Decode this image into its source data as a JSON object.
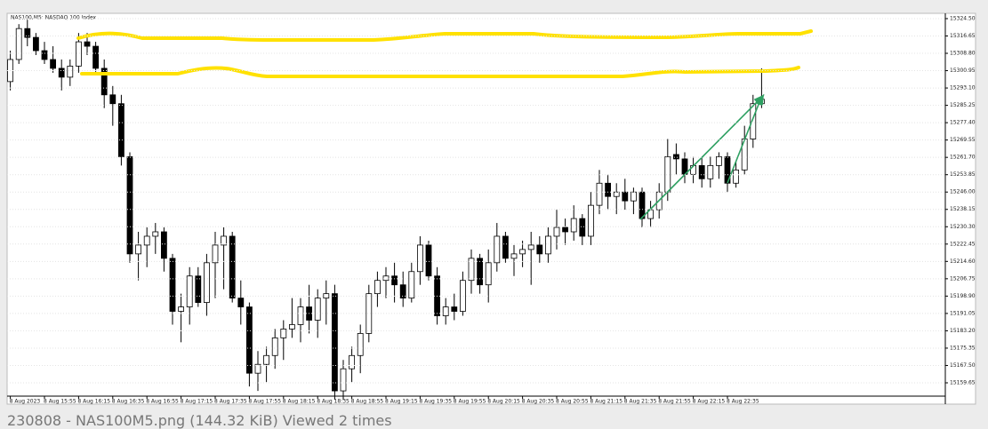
{
  "chart_data": {
    "type": "candlestick",
    "title": "NAS100,M5:  NASDAQ 100 Index",
    "categories": [
      "8 Aug 2023",
      null,
      null,
      null,
      "8 Aug 15:55",
      null,
      null,
      null,
      "8 Aug 16:15",
      null,
      null,
      null,
      "8 Aug 16:35",
      null,
      null,
      null,
      "8 Aug 16:55",
      null,
      null,
      null,
      "8 Aug 17:15",
      null,
      null,
      null,
      "8 Aug 17:35",
      null,
      null,
      null,
      "8 Aug 17:55",
      null,
      null,
      null,
      "8 Aug 18:15",
      null,
      null,
      null,
      "8 Aug 18:35",
      null,
      null,
      null,
      "8 Aug 18:55",
      null,
      null,
      null,
      "8 Aug 19:15",
      null,
      null,
      null,
      "8 Aug 19:35",
      null,
      null,
      null,
      "8 Aug 19:55",
      null,
      null,
      null,
      "8 Aug 20:15",
      null,
      null,
      null,
      "8 Aug 20:35",
      null,
      null,
      null,
      "8 Aug 20:55",
      null,
      null,
      null,
      "8 Aug 21:15",
      null,
      null,
      null,
      "8 Aug 21:35",
      null,
      null,
      null,
      "8 Aug 21:55",
      null,
      null,
      null,
      "8 Aug 22:15",
      null,
      null,
      null,
      "8 Aug 22:35",
      null,
      null,
      null,
      null
    ],
    "ohlc": [
      [
        15296,
        15310,
        15292,
        15306
      ],
      [
        15306,
        15322,
        15304,
        15320
      ],
      [
        15320,
        15324,
        15312,
        15316
      ],
      [
        15316,
        15318,
        15308,
        15310
      ],
      [
        15310,
        15314,
        15304,
        15306
      ],
      [
        15306,
        15312,
        15300,
        15302
      ],
      [
        15302,
        15306,
        15292,
        15298
      ],
      [
        15298,
        15306,
        15294,
        15303
      ],
      [
        15303,
        15318,
        15300,
        15314
      ],
      [
        15314,
        15318,
        15308,
        15312
      ],
      [
        15312,
        15314,
        15300,
        15302
      ],
      [
        15302,
        15306,
        15284,
        15290
      ],
      [
        15290,
        15294,
        15276,
        15286
      ],
      [
        15286,
        15290,
        15258,
        15262
      ],
      [
        15262,
        15264,
        15214,
        15218
      ],
      [
        15218,
        15228,
        15206,
        15222
      ],
      [
        15222,
        15230,
        15212,
        15226
      ],
      [
        15226,
        15232,
        15218,
        15228
      ],
      [
        15228,
        15230,
        15210,
        15216
      ],
      [
        15216,
        15218,
        15186,
        15192
      ],
      [
        15192,
        15200,
        15178,
        15194
      ],
      [
        15194,
        15212,
        15186,
        15208
      ],
      [
        15208,
        15212,
        15194,
        15196
      ],
      [
        15196,
        15218,
        15190,
        15214
      ],
      [
        15214,
        15228,
        15198,
        15222
      ],
      [
        15222,
        15230,
        15202,
        15226
      ],
      [
        15226,
        15228,
        15196,
        15198
      ],
      [
        15198,
        15206,
        15186,
        15194
      ],
      [
        15194,
        15196,
        15158,
        15164
      ],
      [
        15164,
        15174,
        15156,
        15168
      ],
      [
        15168,
        15176,
        15160,
        15172
      ],
      [
        15172,
        15184,
        15166,
        15180
      ],
      [
        15180,
        15188,
        15170,
        15184
      ],
      [
        15184,
        15198,
        15180,
        15186
      ],
      [
        15186,
        15198,
        15178,
        15194
      ],
      [
        15194,
        15204,
        15182,
        15188
      ],
      [
        15188,
        15202,
        15180,
        15198
      ],
      [
        15198,
        15206,
        15186,
        15200
      ],
      [
        15200,
        15204,
        15152,
        15156
      ],
      [
        15156,
        15170,
        15152,
        15166
      ],
      [
        15166,
        15176,
        15160,
        15172
      ],
      [
        15172,
        15186,
        15164,
        15182
      ],
      [
        15182,
        15204,
        15178,
        15200
      ],
      [
        15200,
        15210,
        15194,
        15206
      ],
      [
        15206,
        15212,
        15198,
        15208
      ],
      [
        15208,
        15214,
        15196,
        15204
      ],
      [
        15204,
        15210,
        15194,
        15198
      ],
      [
        15198,
        15214,
        15196,
        15210
      ],
      [
        15210,
        15226,
        15204,
        15222
      ],
      [
        15222,
        15224,
        15206,
        15208
      ],
      [
        15208,
        15212,
        15186,
        15190
      ],
      [
        15190,
        15198,
        15186,
        15194
      ],
      [
        15194,
        15200,
        15188,
        15192
      ],
      [
        15192,
        15210,
        15190,
        15206
      ],
      [
        15206,
        15220,
        15200,
        15216
      ],
      [
        15216,
        15218,
        15200,
        15204
      ],
      [
        15204,
        15220,
        15196,
        15214
      ],
      [
        15214,
        15232,
        15210,
        15226
      ],
      [
        15226,
        15228,
        15214,
        15216
      ],
      [
        15216,
        15222,
        15208,
        15218
      ],
      [
        15218,
        15224,
        15212,
        15220
      ],
      [
        15220,
        15228,
        15204,
        15222
      ],
      [
        15222,
        15226,
        15214,
        15218
      ],
      [
        15218,
        15230,
        15214,
        15226
      ],
      [
        15226,
        15238,
        15220,
        15230
      ],
      [
        15230,
        15234,
        15222,
        15228
      ],
      [
        15228,
        15240,
        15224,
        15234
      ],
      [
        15234,
        15236,
        15222,
        15226
      ],
      [
        15226,
        15246,
        15222,
        15240
      ],
      [
        15240,
        15256,
        15236,
        15250
      ],
      [
        15250,
        15254,
        15238,
        15244
      ],
      [
        15244,
        15250,
        15236,
        15246
      ],
      [
        15246,
        15252,
        15238,
        15242
      ],
      [
        15242,
        15248,
        15236,
        15246
      ],
      [
        15246,
        15248,
        15230,
        15234
      ],
      [
        15234,
        15242,
        15230,
        15238
      ],
      [
        15238,
        15250,
        15234,
        15246
      ],
      [
        15246,
        15270,
        15242,
        15262
      ],
      [
        15263,
        15268,
        15254,
        15261
      ],
      [
        15261,
        15264,
        15250,
        15254
      ],
      [
        15254,
        15262,
        15250,
        15258
      ],
      [
        15258,
        15262,
        15248,
        15252
      ],
      [
        15252,
        15262,
        15248,
        15258
      ],
      [
        15258,
        15264,
        15252,
        15262
      ],
      [
        15262,
        15264,
        15246,
        15250
      ],
      [
        15250,
        15260,
        15248,
        15256
      ],
      [
        15256,
        15276,
        15254,
        15270
      ],
      [
        15270,
        15290,
        15266,
        15286
      ],
      [
        15286,
        15302,
        15284,
        15288
      ]
    ],
    "up_color": "#ffffff",
    "down_color": "#000000",
    "ylim": [
      15150,
      15326.9
    ],
    "yticks": [
      {
        "value": 15324.5,
        "label": "15324.50"
      },
      15316.65,
      {
        "value": 15308.8,
        "label": "15308.80"
      },
      15300.95,
      {
        "value": 15293.1,
        "label": "15293.10"
      },
      15285.25,
      {
        "value": 15277.4,
        "label": "15277.40"
      },
      15269.55,
      {
        "value": 15261.7,
        "label": "15261.70"
      },
      15253.85,
      {
        "value": 15246,
        "label": "15246.00"
      },
      15238.15,
      {
        "value": 15230.3,
        "label": "15230.30"
      },
      15222.45,
      {
        "value": 15214.6,
        "label": "15214.60"
      },
      15206.75,
      {
        "value": 15198.9,
        "label": "15198.90"
      },
      15191.05,
      {
        "value": 15183.2,
        "label": "15183.20"
      },
      15175.35,
      {
        "value": 15167.5,
        "label": "15167.50"
      },
      15159.65
    ],
    "grid": true
  },
  "caption": "230808 - NAS100M5.png (144.32 KiB) Viewed 2 times"
}
